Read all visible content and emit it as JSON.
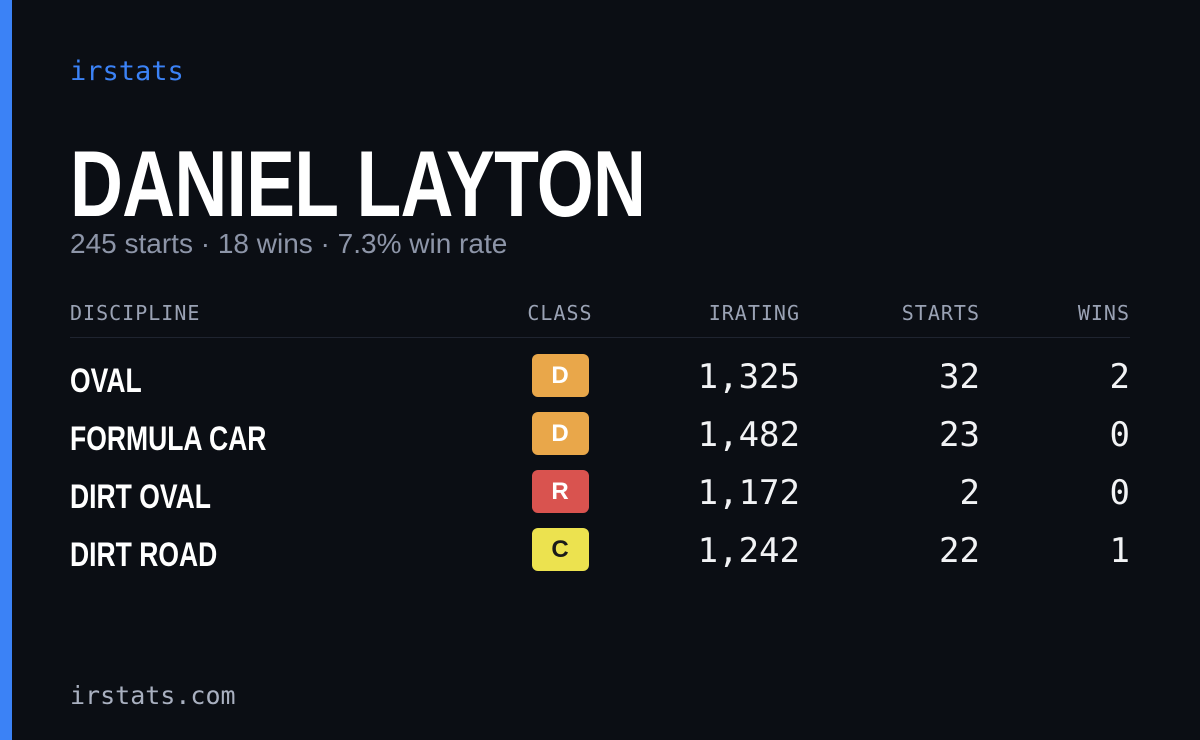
{
  "brand": "irstats",
  "name": "DANIEL LAYTON",
  "summary": "245 starts · 18 wins · 7.3% win rate",
  "table": {
    "headers": [
      "DISCIPLINE",
      "CLASS",
      "IRATING",
      "STARTS",
      "WINS"
    ],
    "rows": [
      {
        "discipline": "OVAL",
        "class": "D",
        "class_color": "#e9a74a",
        "irating": "1,325",
        "starts": "32",
        "wins": "2"
      },
      {
        "discipline": "FORMULA CAR",
        "class": "D",
        "class_color": "#e9a74a",
        "irating": "1,482",
        "starts": "23",
        "wins": "0"
      },
      {
        "discipline": "DIRT OVAL",
        "class": "R",
        "class_color": "#d9534f",
        "irating": "1,172",
        "starts": "2",
        "wins": "0"
      },
      {
        "discipline": "DIRT ROAD",
        "class": "C",
        "class_color": "#ece24f",
        "irating": "1,242",
        "starts": "22",
        "wins": "1"
      }
    ]
  },
  "footer": "irstats.com"
}
